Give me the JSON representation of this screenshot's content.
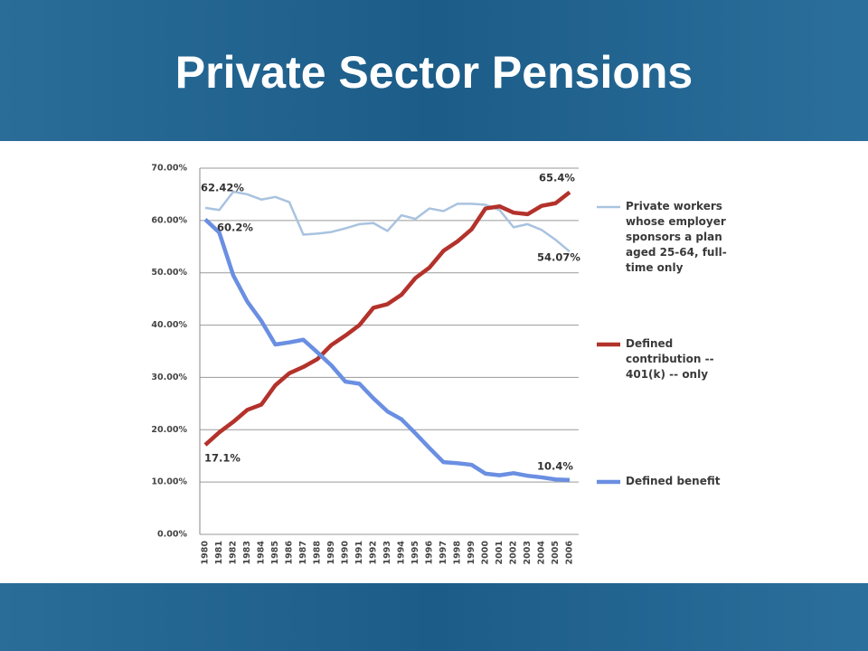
{
  "header": {
    "title": "Private Sector Pensions"
  },
  "chart_data": {
    "type": "line",
    "categories": [
      "1980",
      "1981",
      "1982",
      "1983",
      "1984",
      "1985",
      "1986",
      "1987",
      "1988",
      "1989",
      "1990",
      "1991",
      "1992",
      "1993",
      "1994",
      "1995",
      "1996",
      "1997",
      "1998",
      "1999",
      "2000",
      "2001",
      "2002",
      "2003",
      "2004",
      "2005",
      "2006"
    ],
    "series": [
      {
        "name": "Private workers whose employer sponsors a plan aged 25-64, full-time only",
        "color": "#a9c3df",
        "values": [
          62.42,
          62,
          65.5,
          65,
          64,
          64.5,
          63.5,
          57.3,
          57.5,
          57.8,
          58.5,
          59.3,
          59.5,
          58,
          61,
          60.3,
          62.3,
          61.8,
          63.2,
          63.2,
          63,
          62,
          58.7,
          59.3,
          58.2,
          56.3,
          54.07
        ]
      },
      {
        "name": "Defined contribution -- 401(k) -- only",
        "color": "#b3322b",
        "values": [
          17.1,
          19.5,
          21.5,
          23.8,
          24.8,
          28.5,
          30.8,
          32,
          33.5,
          36.2,
          38,
          40,
          43.3,
          44,
          45.8,
          49,
          51,
          54.2,
          56,
          58.3,
          62.3,
          62.7,
          61.5,
          61.2,
          62.8,
          63.3,
          65.4
        ]
      },
      {
        "name": "Defined benefit",
        "color": "#6a8fe2",
        "values": [
          60.2,
          57.7,
          49.5,
          44.5,
          40.8,
          36.3,
          36.7,
          37.2,
          34.8,
          32.3,
          29.2,
          28.8,
          26,
          23.5,
          22,
          19.3,
          16.5,
          13.8,
          13.6,
          13.3,
          11.6,
          11.3,
          11.7,
          11.2,
          10.9,
          10.5,
          10.4
        ]
      }
    ],
    "annotations": [
      "62.42%",
      "60.2%",
      "17.1%",
      "65.4%",
      "54.07%",
      "10.4%"
    ],
    "ylim": [
      0,
      70
    ],
    "yticks": [
      {
        "value": 0,
        "label": "0.00%"
      },
      {
        "value": 10,
        "label": "10.00%"
      },
      {
        "value": 20,
        "label": "20.00%"
      },
      {
        "value": 30,
        "label": "30.00%"
      },
      {
        "value": 40,
        "label": "40.00%"
      },
      {
        "value": 50,
        "label": "50.00%"
      },
      {
        "value": 60,
        "label": "60.00%"
      },
      {
        "value": 70,
        "label": "70.00%"
      }
    ],
    "grid": true,
    "legend": "right"
  }
}
